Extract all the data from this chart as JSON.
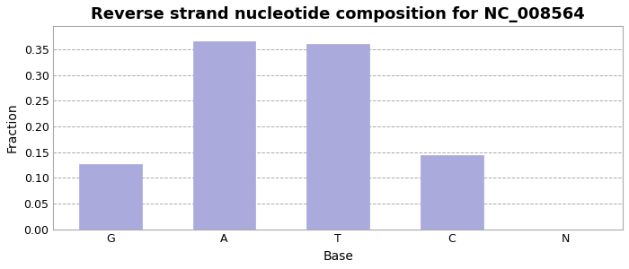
{
  "title": "Reverse strand nucleotide composition for NC_008564",
  "categories": [
    "G",
    "A",
    "T",
    "C",
    "N"
  ],
  "values": [
    0.127,
    0.365,
    0.361,
    0.145,
    0.0
  ],
  "bar_color": "#aaaadd",
  "bar_edgecolor": "#aaaadd",
  "xlabel": "Base",
  "ylabel": "Fraction",
  "ylim": [
    0.0,
    0.395
  ],
  "yticks": [
    0.0,
    0.05,
    0.1,
    0.15,
    0.2,
    0.25,
    0.3,
    0.35
  ],
  "grid_color": "#aaaaaa",
  "title_fontsize": 13,
  "axis_label_fontsize": 10,
  "tick_fontsize": 9,
  "background_color": "#ffffff",
  "spine_color": "#aaaaaa"
}
